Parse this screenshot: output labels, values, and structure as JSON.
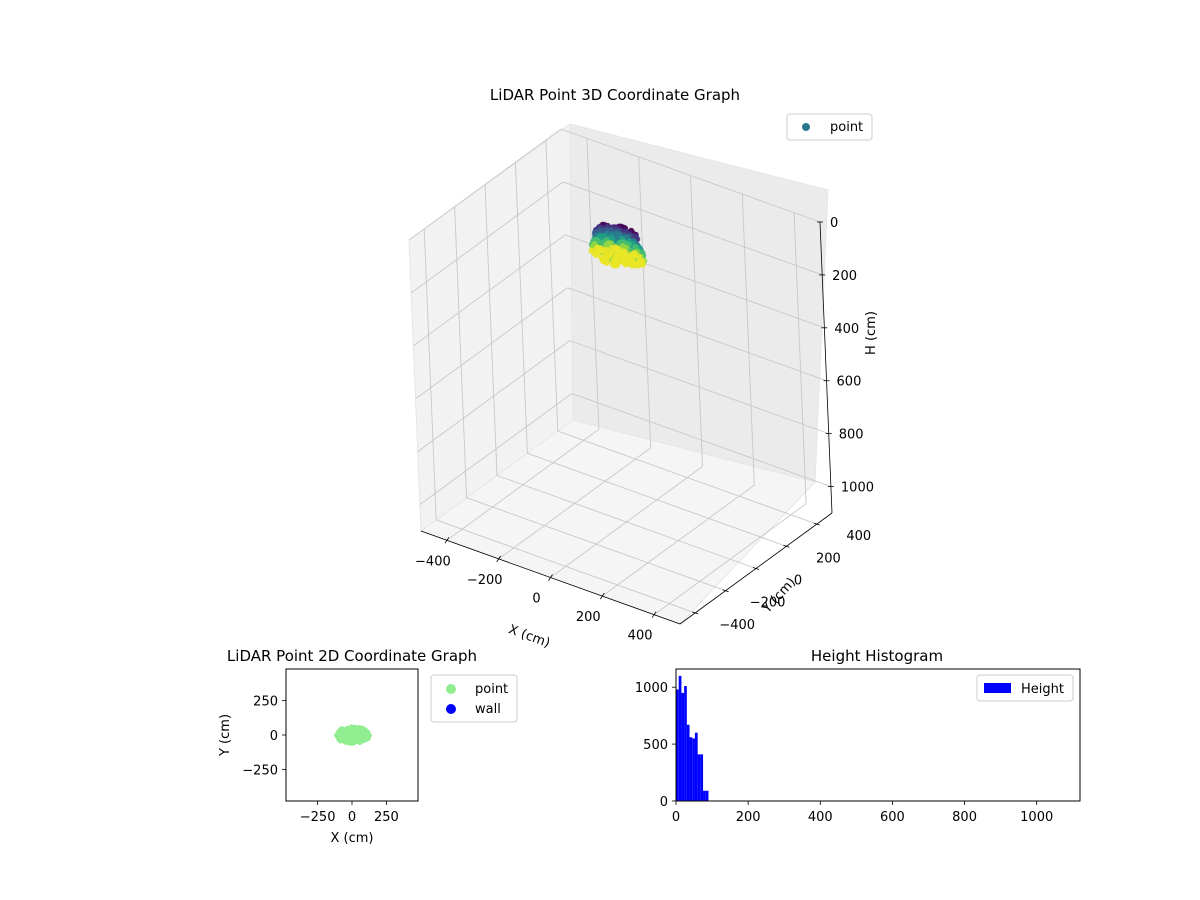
{
  "figure": {
    "background": "#ffffff"
  },
  "chart_data": [
    {
      "type": "scatter",
      "projection": "3d",
      "title": "LiDAR Point 3D Coordinate Graph",
      "xlabel": "X (cm)",
      "ylabel": "Y (cm)",
      "zlabel": "H (cm)",
      "xlim": [
        -500,
        500
      ],
      "ylim": [
        -500,
        500
      ],
      "zlim": [
        0,
        1100
      ],
      "z_inverted": true,
      "xticks": [
        -400,
        -200,
        0,
        200,
        400
      ],
      "yticks": [
        -400,
        -200,
        0,
        200,
        400
      ],
      "zticks": [
        0,
        200,
        400,
        600,
        800,
        1000
      ],
      "grid": true,
      "legend": {
        "position": "top-right",
        "entries": [
          {
            "label": "point",
            "color": "#2a788e"
          }
        ]
      },
      "colormap": "viridis",
      "series": [
        {
          "name": "point",
          "cluster": {
            "x_range": [
              -90,
              110
            ],
            "y_range": [
              -60,
              60
            ],
            "h_range": [
              0,
              95
            ]
          }
        }
      ]
    },
    {
      "type": "scatter",
      "title": "LiDAR Point 2D Coordinate Graph",
      "xlabel": "X (cm)",
      "ylabel": "Y (cm)",
      "xlim": [
        -480,
        480
      ],
      "ylim": [
        -480,
        480
      ],
      "xticks": [
        -250,
        0,
        250
      ],
      "yticks": [
        -250,
        0,
        250
      ],
      "xtick_labels": [
        "−250",
        "0",
        "250"
      ],
      "ytick_labels": [
        "−250",
        "0",
        "250"
      ],
      "grid": false,
      "legend": {
        "position": "outside-right",
        "entries": [
          {
            "label": "point",
            "color": "#90ee90"
          },
          {
            "label": "wall",
            "color": "#0000ff"
          }
        ]
      },
      "series": [
        {
          "name": "point",
          "color": "#90ee90",
          "cluster": {
            "x_range": [
              -120,
              130
            ],
            "y_range": [
              -60,
              60
            ]
          }
        },
        {
          "name": "wall",
          "color": "#0000ff",
          "points": []
        }
      ]
    },
    {
      "type": "bar",
      "subtype": "histogram",
      "title": "Height Histogram",
      "xlabel": "",
      "ylabel": "",
      "xlim": [
        0,
        1120
      ],
      "ylim": [
        0,
        1160
      ],
      "xticks": [
        0,
        200,
        400,
        600,
        800,
        1000
      ],
      "yticks": [
        0,
        500,
        1000
      ],
      "grid": false,
      "legend": {
        "position": "top-right",
        "entries": [
          {
            "label": "Height",
            "color": "#0000ff"
          }
        ]
      },
      "series": [
        {
          "name": "Height",
          "color": "#0000ff",
          "bin_edges": [
            0,
            7.5,
            15,
            22.5,
            30,
            37.5,
            45,
            52.5,
            60,
            67.5,
            75,
            82.5,
            90,
            97.5
          ],
          "values": [
            980,
            1100,
            950,
            1010,
            670,
            560,
            550,
            600,
            410,
            410,
            90,
            90,
            0
          ]
        }
      ]
    }
  ]
}
